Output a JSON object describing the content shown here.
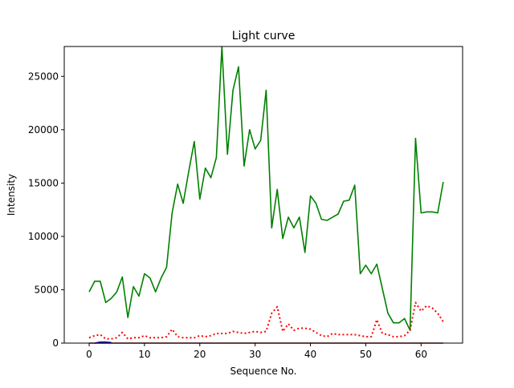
{
  "chart_data": {
    "type": "line",
    "title": "Light curve",
    "xlabel": "Sequence No.",
    "ylabel": "Intensity",
    "xlim": [
      -4.5,
      67.5
    ],
    "ylim": [
      0,
      27800
    ],
    "grid": false,
    "legend": "none",
    "xticks": [
      0,
      10,
      20,
      30,
      40,
      50,
      60
    ],
    "yticks": [
      0,
      5000,
      10000,
      15000,
      20000,
      25000
    ],
    "series": [
      {
        "color": "#008000",
        "style": "solid",
        "x": [
          0,
          1,
          2,
          3,
          4,
          5,
          6,
          7,
          8,
          9,
          10,
          11,
          12,
          13,
          14,
          15,
          16,
          17,
          18,
          19,
          20,
          21,
          22,
          23,
          24,
          25,
          26,
          27,
          28,
          29,
          30,
          31,
          32,
          33,
          34,
          35,
          36,
          37,
          38,
          39,
          40,
          41,
          42,
          43,
          44,
          45,
          46,
          47,
          48,
          49,
          50,
          51,
          52,
          53,
          54,
          55,
          56,
          57,
          58,
          59,
          60,
          61,
          62,
          63,
          64
        ],
        "values": [
          4800,
          5800,
          5800,
          3800,
          4200,
          4800,
          6200,
          2400,
          5300,
          4400,
          6500,
          6100,
          4800,
          6100,
          7100,
          12200,
          14900,
          13100,
          16100,
          18900,
          13500,
          16400,
          15500,
          17400,
          27800,
          17700,
          23700,
          25900,
          16600,
          20000,
          18200,
          19000,
          23700,
          10800,
          14400,
          9800,
          11800,
          10800,
          11800,
          8500,
          13800,
          13100,
          11600,
          11500,
          11800,
          12100,
          13300,
          13400,
          14800,
          6500,
          7300,
          6500,
          7400,
          5100,
          2800,
          1900,
          1900,
          2300,
          1200,
          19200,
          12200,
          12300,
          12300,
          12200,
          15100
        ]
      },
      {
        "color": "#ff0000",
        "style": "dotted",
        "x": [
          0,
          1,
          2,
          3,
          4,
          5,
          6,
          7,
          8,
          9,
          10,
          11,
          12,
          13,
          14,
          15,
          16,
          17,
          18,
          19,
          20,
          21,
          22,
          23,
          24,
          25,
          26,
          27,
          28,
          29,
          30,
          31,
          32,
          33,
          34,
          35,
          36,
          37,
          38,
          39,
          40,
          41,
          42,
          43,
          44,
          45,
          46,
          47,
          48,
          49,
          50,
          51,
          52,
          53,
          54,
          55,
          56,
          57,
          58,
          59,
          60,
          61,
          62,
          63,
          64
        ],
        "values": [
          500,
          700,
          800,
          400,
          400,
          500,
          1000,
          400,
          500,
          500,
          700,
          500,
          500,
          500,
          600,
          1300,
          600,
          500,
          500,
          500,
          700,
          600,
          700,
          900,
          900,
          900,
          1100,
          1000,
          900,
          1000,
          1100,
          1000,
          1100,
          2800,
          3400,
          1100,
          1800,
          1200,
          1400,
          1400,
          1300,
          1000,
          700,
          600,
          900,
          800,
          800,
          800,
          800,
          700,
          600,
          600,
          2200,
          900,
          800,
          600,
          600,
          700,
          1200,
          3800,
          3000,
          3500,
          3300,
          2800,
          2000
        ]
      },
      {
        "color": "#0000ff",
        "style": "solid",
        "x": [
          1,
          2,
          3,
          4
        ],
        "values": [
          0,
          100,
          100,
          50
        ]
      },
      {
        "color": "#8b0000",
        "style": "solid",
        "x": [
          0,
          64
        ],
        "values": [
          0,
          0
        ]
      }
    ]
  }
}
